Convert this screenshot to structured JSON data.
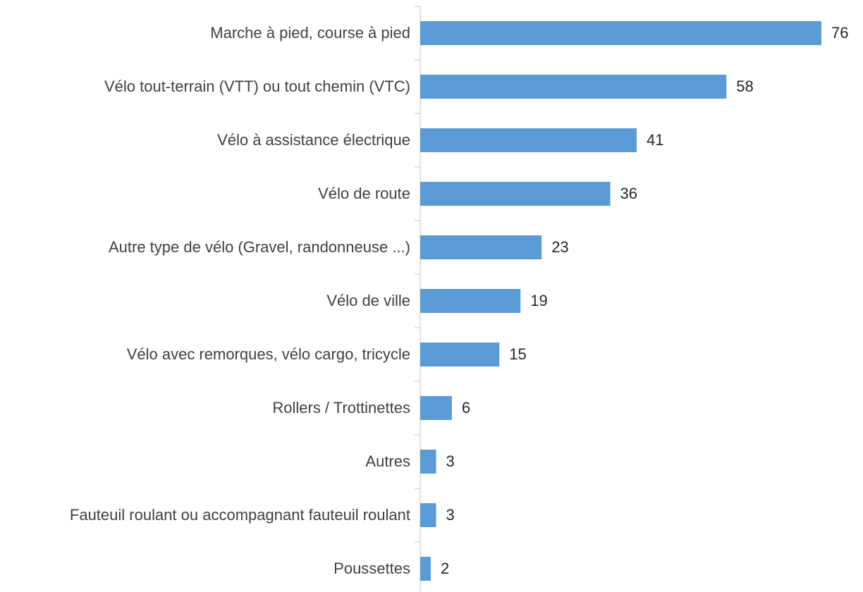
{
  "chart_data": {
    "type": "bar",
    "orientation": "horizontal",
    "categories": [
      "Marche à pied, course à pied",
      "Vélo tout-terrain (VTT) ou tout chemin (VTC)",
      "Vélo à assistance électrique",
      "Vélo de route",
      "Autre type de vélo (Gravel, randonneuse ...)",
      "Vélo de ville",
      "Vélo avec remorques, vélo cargo, tricycle",
      "Rollers / Trottinettes",
      "Autres",
      "Fauteuil roulant ou accompagnant fauteuil roulant",
      "Poussettes"
    ],
    "values": [
      76,
      58,
      41,
      36,
      23,
      19,
      15,
      6,
      3,
      3,
      2
    ],
    "color": "#5b9bd5"
  }
}
